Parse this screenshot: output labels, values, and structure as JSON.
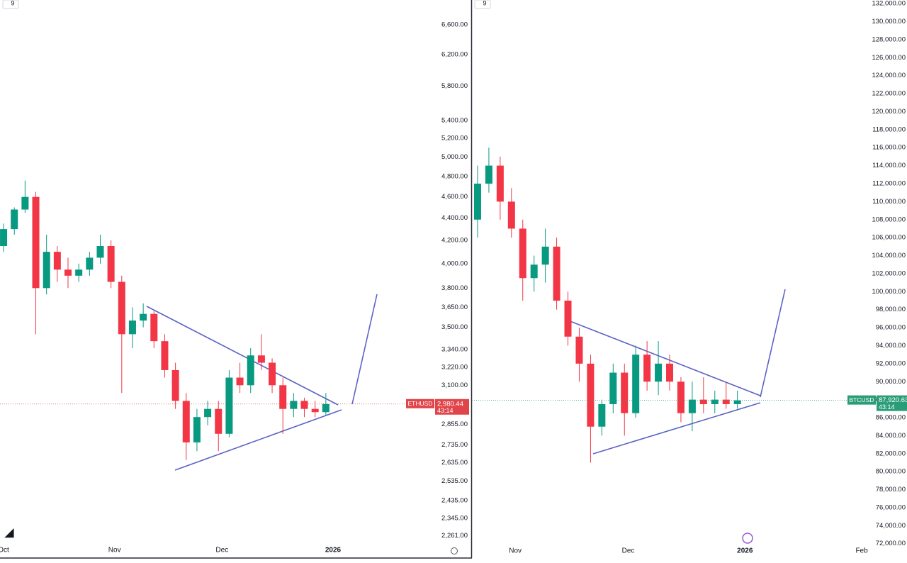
{
  "chart_data": [
    {
      "type": "candlestick",
      "interval_label": "9",
      "symbol": "ETHUSD",
      "countdown": "43:14",
      "last_price": {
        "value": 2980.44,
        "label": "2,980.44"
      },
      "up_color": "#089981",
      "down_color": "#f23645",
      "price_tag_color": "#e0454a",
      "log_scale": true,
      "ylim": [
        2220,
        6950
      ],
      "xlim": [
        -1,
        120.9
      ],
      "yticks": [
        {
          "value": 2261,
          "label": "2,261.00"
        },
        {
          "value": 2345,
          "label": "2,345.00"
        },
        {
          "value": 2435,
          "label": "2,435.00"
        },
        {
          "value": 2535,
          "label": "2,535.00"
        },
        {
          "value": 2635,
          "label": "2,635.00"
        },
        {
          "value": 2735,
          "label": "2,735.00"
        },
        {
          "value": 2855,
          "label": "2,855.00"
        },
        {
          "value": 3100,
          "label": "3,100.00"
        },
        {
          "value": 3220,
          "label": "3,220.00"
        },
        {
          "value": 3340,
          "label": "3,340.00"
        },
        {
          "value": 3500,
          "label": "3,500.00"
        },
        {
          "value": 3650,
          "label": "3,650.00"
        },
        {
          "value": 3800,
          "label": "3,800.00"
        },
        {
          "value": 4000,
          "label": "4,000.00"
        },
        {
          "value": 4200,
          "label": "4,200.00"
        },
        {
          "value": 4400,
          "label": "4,400.00"
        },
        {
          "value": 4600,
          "label": "4,600.00"
        },
        {
          "value": 4800,
          "label": "4,800.00"
        },
        {
          "value": 5000,
          "label": "5,000.00"
        },
        {
          "value": 5200,
          "label": "5,200.00"
        },
        {
          "value": 5400,
          "label": "5,400.00"
        },
        {
          "value": 5800,
          "label": "5,800.00"
        },
        {
          "value": 6200,
          "label": "6,200.00"
        },
        {
          "value": 6600,
          "label": "6,600.00"
        }
      ],
      "xticks": [
        {
          "value": 0,
          "label": "Oct"
        },
        {
          "value": 31,
          "label": "Nov"
        },
        {
          "value": 61,
          "label": "Dec"
        },
        {
          "value": 92,
          "label": "2026"
        }
      ],
      "x": [
        0,
        3,
        6,
        9,
        12,
        15,
        18,
        21,
        24,
        27,
        30,
        33,
        36,
        39,
        42,
        45,
        48,
        51,
        54,
        57,
        60,
        63,
        66,
        69,
        72,
        75,
        78,
        81,
        84,
        87,
        90
      ],
      "open": [
        4150,
        4300,
        4480,
        4600,
        3800,
        4100,
        3950,
        3900,
        3950,
        4050,
        4150,
        3850,
        3450,
        3550,
        3600,
        3400,
        3200,
        3000,
        2750,
        2900,
        2950,
        2800,
        3150,
        3100,
        3300,
        3250,
        3100,
        2950,
        3000,
        2950,
        2930
      ],
      "high": [
        4350,
        4500,
        4760,
        4650,
        4250,
        4150,
        4050,
        4000,
        4100,
        4250,
        4200,
        3900,
        3650,
        3680,
        3620,
        3450,
        3250,
        3050,
        2950,
        3000,
        3000,
        3200,
        3250,
        3350,
        3450,
        3280,
        3150,
        3050,
        3020,
        3000,
        3050
      ],
      "low": [
        4100,
        4250,
        4450,
        3450,
        3750,
        3850,
        3800,
        3850,
        3900,
        4000,
        3800,
        3050,
        3350,
        3500,
        3350,
        3150,
        2950,
        2650,
        2700,
        2850,
        2700,
        2780,
        3050,
        3050,
        3200,
        3050,
        2800,
        2900,
        2900,
        2900,
        2910
      ],
      "close": [
        4300,
        4480,
        4600,
        3800,
        4100,
        3950,
        3900,
        3950,
        4050,
        4150,
        3850,
        3450,
        3550,
        3600,
        3400,
        3200,
        3000,
        2750,
        2900,
        2950,
        2800,
        3150,
        3100,
        3300,
        3250,
        3100,
        2950,
        3000,
        2950,
        2930,
        2980.44
      ]
    },
    {
      "type": "candlestick",
      "interval_label": "9",
      "symbol": "BTCUSD",
      "countdown": "43:14",
      "last_price": {
        "value": 87920.63,
        "label": "87,920.63"
      },
      "up_color": "#089981",
      "down_color": "#f23645",
      "price_tag_color": "#2a9d78",
      "log_scale": false,
      "ylim": [
        71900,
        132400
      ],
      "xlim": [
        19.5,
        126
      ],
      "yticks": [
        {
          "value": 72000,
          "label": "72,000.00"
        },
        {
          "value": 74000,
          "label": "74,000.00"
        },
        {
          "value": 76000,
          "label": "76,000.00"
        },
        {
          "value": 78000,
          "label": "78,000.00"
        },
        {
          "value": 80000,
          "label": "80,000.00"
        },
        {
          "value": 82000,
          "label": "82,000.00"
        },
        {
          "value": 84000,
          "label": "84,000.00"
        },
        {
          "value": 86000,
          "label": "86,000.00"
        },
        {
          "value": 88000,
          "label": "88,000.00"
        },
        {
          "value": 90000,
          "label": "90,000.00"
        },
        {
          "value": 92000,
          "label": "92,000.00"
        },
        {
          "value": 94000,
          "label": "94,000.00"
        },
        {
          "value": 96000,
          "label": "96,000.00"
        },
        {
          "value": 98000,
          "label": "98,000.00"
        },
        {
          "value": 100000,
          "label": "100,000.00"
        },
        {
          "value": 102000,
          "label": "102,000.00"
        },
        {
          "value": 104000,
          "label": "104,000.00"
        },
        {
          "value": 106000,
          "label": "106,000.00"
        },
        {
          "value": 108000,
          "label": "108,000.00"
        },
        {
          "value": 110000,
          "label": "110,000.00"
        },
        {
          "value": 112000,
          "label": "112,000.00"
        },
        {
          "value": 114000,
          "label": "114,000.00"
        },
        {
          "value": 116000,
          "label": "116,000.00"
        },
        {
          "value": 118000,
          "label": "118,000.00"
        },
        {
          "value": 120000,
          "label": "120,000.00"
        },
        {
          "value": 122000,
          "label": "122,000.00"
        },
        {
          "value": 124000,
          "label": "124,000.00"
        },
        {
          "value": 126000,
          "label": "126,000.00"
        },
        {
          "value": 128000,
          "label": "128,000.00"
        },
        {
          "value": 130000,
          "label": "130,000.00"
        },
        {
          "value": 132000,
          "label": "132,000.00"
        }
      ],
      "xticks": [
        {
          "value": 31,
          "label": "Nov"
        },
        {
          "value": 61,
          "label": "Dec"
        },
        {
          "value": 92,
          "label": "2026"
        },
        {
          "value": 123,
          "label": "Feb"
        }
      ],
      "x": [
        21,
        24,
        27,
        30,
        33,
        36,
        39,
        42,
        45,
        48,
        51,
        54,
        57,
        60,
        63,
        66,
        69,
        72,
        75,
        78,
        81,
        84,
        87,
        90
      ],
      "open": [
        108000,
        112000,
        114000,
        110000,
        107000,
        101500,
        103000,
        105000,
        99000,
        95000,
        92000,
        85000,
        87500,
        91000,
        86500,
        93000,
        90000,
        92000,
        90000,
        86500,
        88000,
        87500,
        88000,
        87500
      ],
      "high": [
        114000,
        116000,
        115000,
        111500,
        108000,
        104000,
        107000,
        106000,
        100000,
        96000,
        93000,
        88000,
        92000,
        92000,
        94000,
        94500,
        94500,
        93000,
        90500,
        90000,
        90500,
        89000,
        90000,
        89000
      ],
      "low": [
        106000,
        111000,
        108000,
        106000,
        99000,
        100000,
        101000,
        98000,
        94000,
        90000,
        81000,
        84000,
        86500,
        84000,
        86000,
        89000,
        88500,
        89000,
        85500,
        84500,
        86500,
        86500,
        87000,
        87000
      ],
      "close": [
        112000,
        114000,
        110000,
        107000,
        101500,
        103000,
        105000,
        99000,
        95000,
        92000,
        85000,
        87500,
        91000,
        86500,
        93000,
        90000,
        92000,
        90000,
        86500,
        88000,
        87500,
        88000,
        87500,
        87920.63
      ]
    }
  ]
}
